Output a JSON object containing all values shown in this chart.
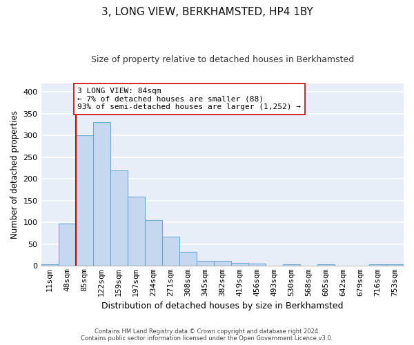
{
  "title": "3, LONG VIEW, BERKHAMSTED, HP4 1BY",
  "subtitle": "Size of property relative to detached houses in Berkhamsted",
  "xlabel": "Distribution of detached houses by size in Berkhamsted",
  "ylabel": "Number of detached properties",
  "categories": [
    "11sqm",
    "48sqm",
    "85sqm",
    "122sqm",
    "159sqm",
    "197sqm",
    "234sqm",
    "271sqm",
    "308sqm",
    "345sqm",
    "382sqm",
    "419sqm",
    "456sqm",
    "493sqm",
    "530sqm",
    "568sqm",
    "605sqm",
    "642sqm",
    "679sqm",
    "716sqm",
    "753sqm"
  ],
  "values": [
    3,
    97,
    300,
    330,
    220,
    160,
    105,
    67,
    33,
    12,
    12,
    7,
    5,
    0,
    4,
    0,
    4,
    0,
    0,
    4,
    3
  ],
  "bar_color": "#c5d8f0",
  "bar_edge_color": "#6aaad4",
  "bar_edge_width": 0.8,
  "annotation_box_text_line1": "3 LONG VIEW: 84sqm",
  "annotation_box_text_line2": "← 7% of detached houses are smaller (88)",
  "annotation_box_text_line3": "93% of semi-detached houses are larger (1,252) →",
  "annotation_line_color": "#cc0000",
  "annotation_box_color": "#ffffff",
  "annotation_box_edge_color": "#cc0000",
  "ytick_values": [
    0,
    50,
    100,
    150,
    200,
    250,
    300,
    350,
    400
  ],
  "ylim": [
    0,
    420
  ],
  "background_color": "#e8eef8",
  "grid_color": "#ffffff",
  "footer_line1": "Contains HM Land Registry data © Crown copyright and database right 2024.",
  "footer_line2": "Contains public sector information licensed under the Open Government Licence v3.0.",
  "title_fontsize": 11,
  "subtitle_fontsize": 9,
  "xlabel_fontsize": 9,
  "ylabel_fontsize": 8.5,
  "tick_fontsize": 8,
  "annotation_fontsize": 8
}
